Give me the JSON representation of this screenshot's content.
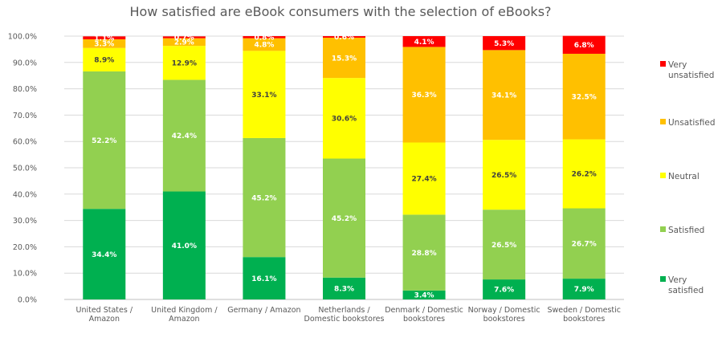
{
  "chart_data": {
    "type": "bar",
    "stacked": true,
    "title": "How satisfied are eBook consumers with the selection of eBooks?",
    "xlabel": "",
    "ylabel": "",
    "ylim": [
      0,
      100
    ],
    "y_ticks": [
      "0.0%",
      "10.0%",
      "20.0%",
      "30.0%",
      "40.0%",
      "50.0%",
      "60.0%",
      "70.0%",
      "80.0%",
      "90.0%",
      "100.0%"
    ],
    "categories": [
      [
        "United States /",
        "Amazon"
      ],
      [
        "United Kingdom /",
        "Amazon"
      ],
      [
        "Germany / Amazon"
      ],
      [
        "Netherlands /",
        "Domestic bookstores"
      ],
      [
        "Denmark / Domestic",
        "bookstores"
      ],
      [
        "Norway  / Domestic",
        "bookstores"
      ],
      [
        "Sweden / Domestic",
        "bookstores"
      ]
    ],
    "series": [
      {
        "name": "Very satisfied",
        "legend": [
          "Very",
          "satisfied"
        ],
        "color": "#00b050",
        "label_color": "#ffffff",
        "values": [
          34.4,
          41.0,
          16.1,
          8.3,
          3.4,
          7.6,
          7.9
        ],
        "labels": [
          "34.4%",
          "41.0%",
          "16.1%",
          "8.3%",
          "3.4%",
          "7.6%",
          "7.9%"
        ]
      },
      {
        "name": "Satisfied",
        "legend": [
          "Satisfied"
        ],
        "color": "#92d050",
        "label_color": "#ffffff",
        "values": [
          52.2,
          42.4,
          45.2,
          45.2,
          28.8,
          26.5,
          26.7
        ],
        "labels": [
          "52.2%",
          "42.4%",
          "45.2%",
          "45.2%",
          "28.8%",
          "26.5%",
          "26.7%"
        ]
      },
      {
        "name": "Neutral",
        "legend": [
          "Neutral"
        ],
        "color": "#ffff00",
        "label_color": "#404040",
        "values": [
          8.9,
          12.9,
          33.1,
          30.6,
          27.4,
          26.5,
          26.2
        ],
        "labels": [
          "8.9%",
          "12.9%",
          "33.1%",
          "30.6%",
          "27.4%",
          "26.5%",
          "26.2%"
        ]
      },
      {
        "name": "Unsatisfied",
        "legend": [
          "Unsatisfied"
        ],
        "color": "#ffc000",
        "label_color": "#ffffff",
        "values": [
          3.3,
          2.9,
          4.8,
          15.3,
          36.3,
          34.1,
          32.5
        ],
        "labels": [
          "3.3%",
          "2.9%",
          "4.8%",
          "15.3%",
          "36.3%",
          "34.1%",
          "32.5%"
        ]
      },
      {
        "name": "Very unsatisfied",
        "legend": [
          "Very",
          "unsatisfied"
        ],
        "color": "#ff0000",
        "label_color": "#ffffff",
        "values": [
          1.1,
          0.7,
          0.8,
          0.6,
          4.1,
          5.3,
          6.8
        ],
        "labels": [
          "1.1%",
          "0.7%",
          "0.8%",
          "0.6%",
          "4.1%",
          "5.3%",
          "6.8%"
        ]
      }
    ],
    "legend_position": "right"
  }
}
